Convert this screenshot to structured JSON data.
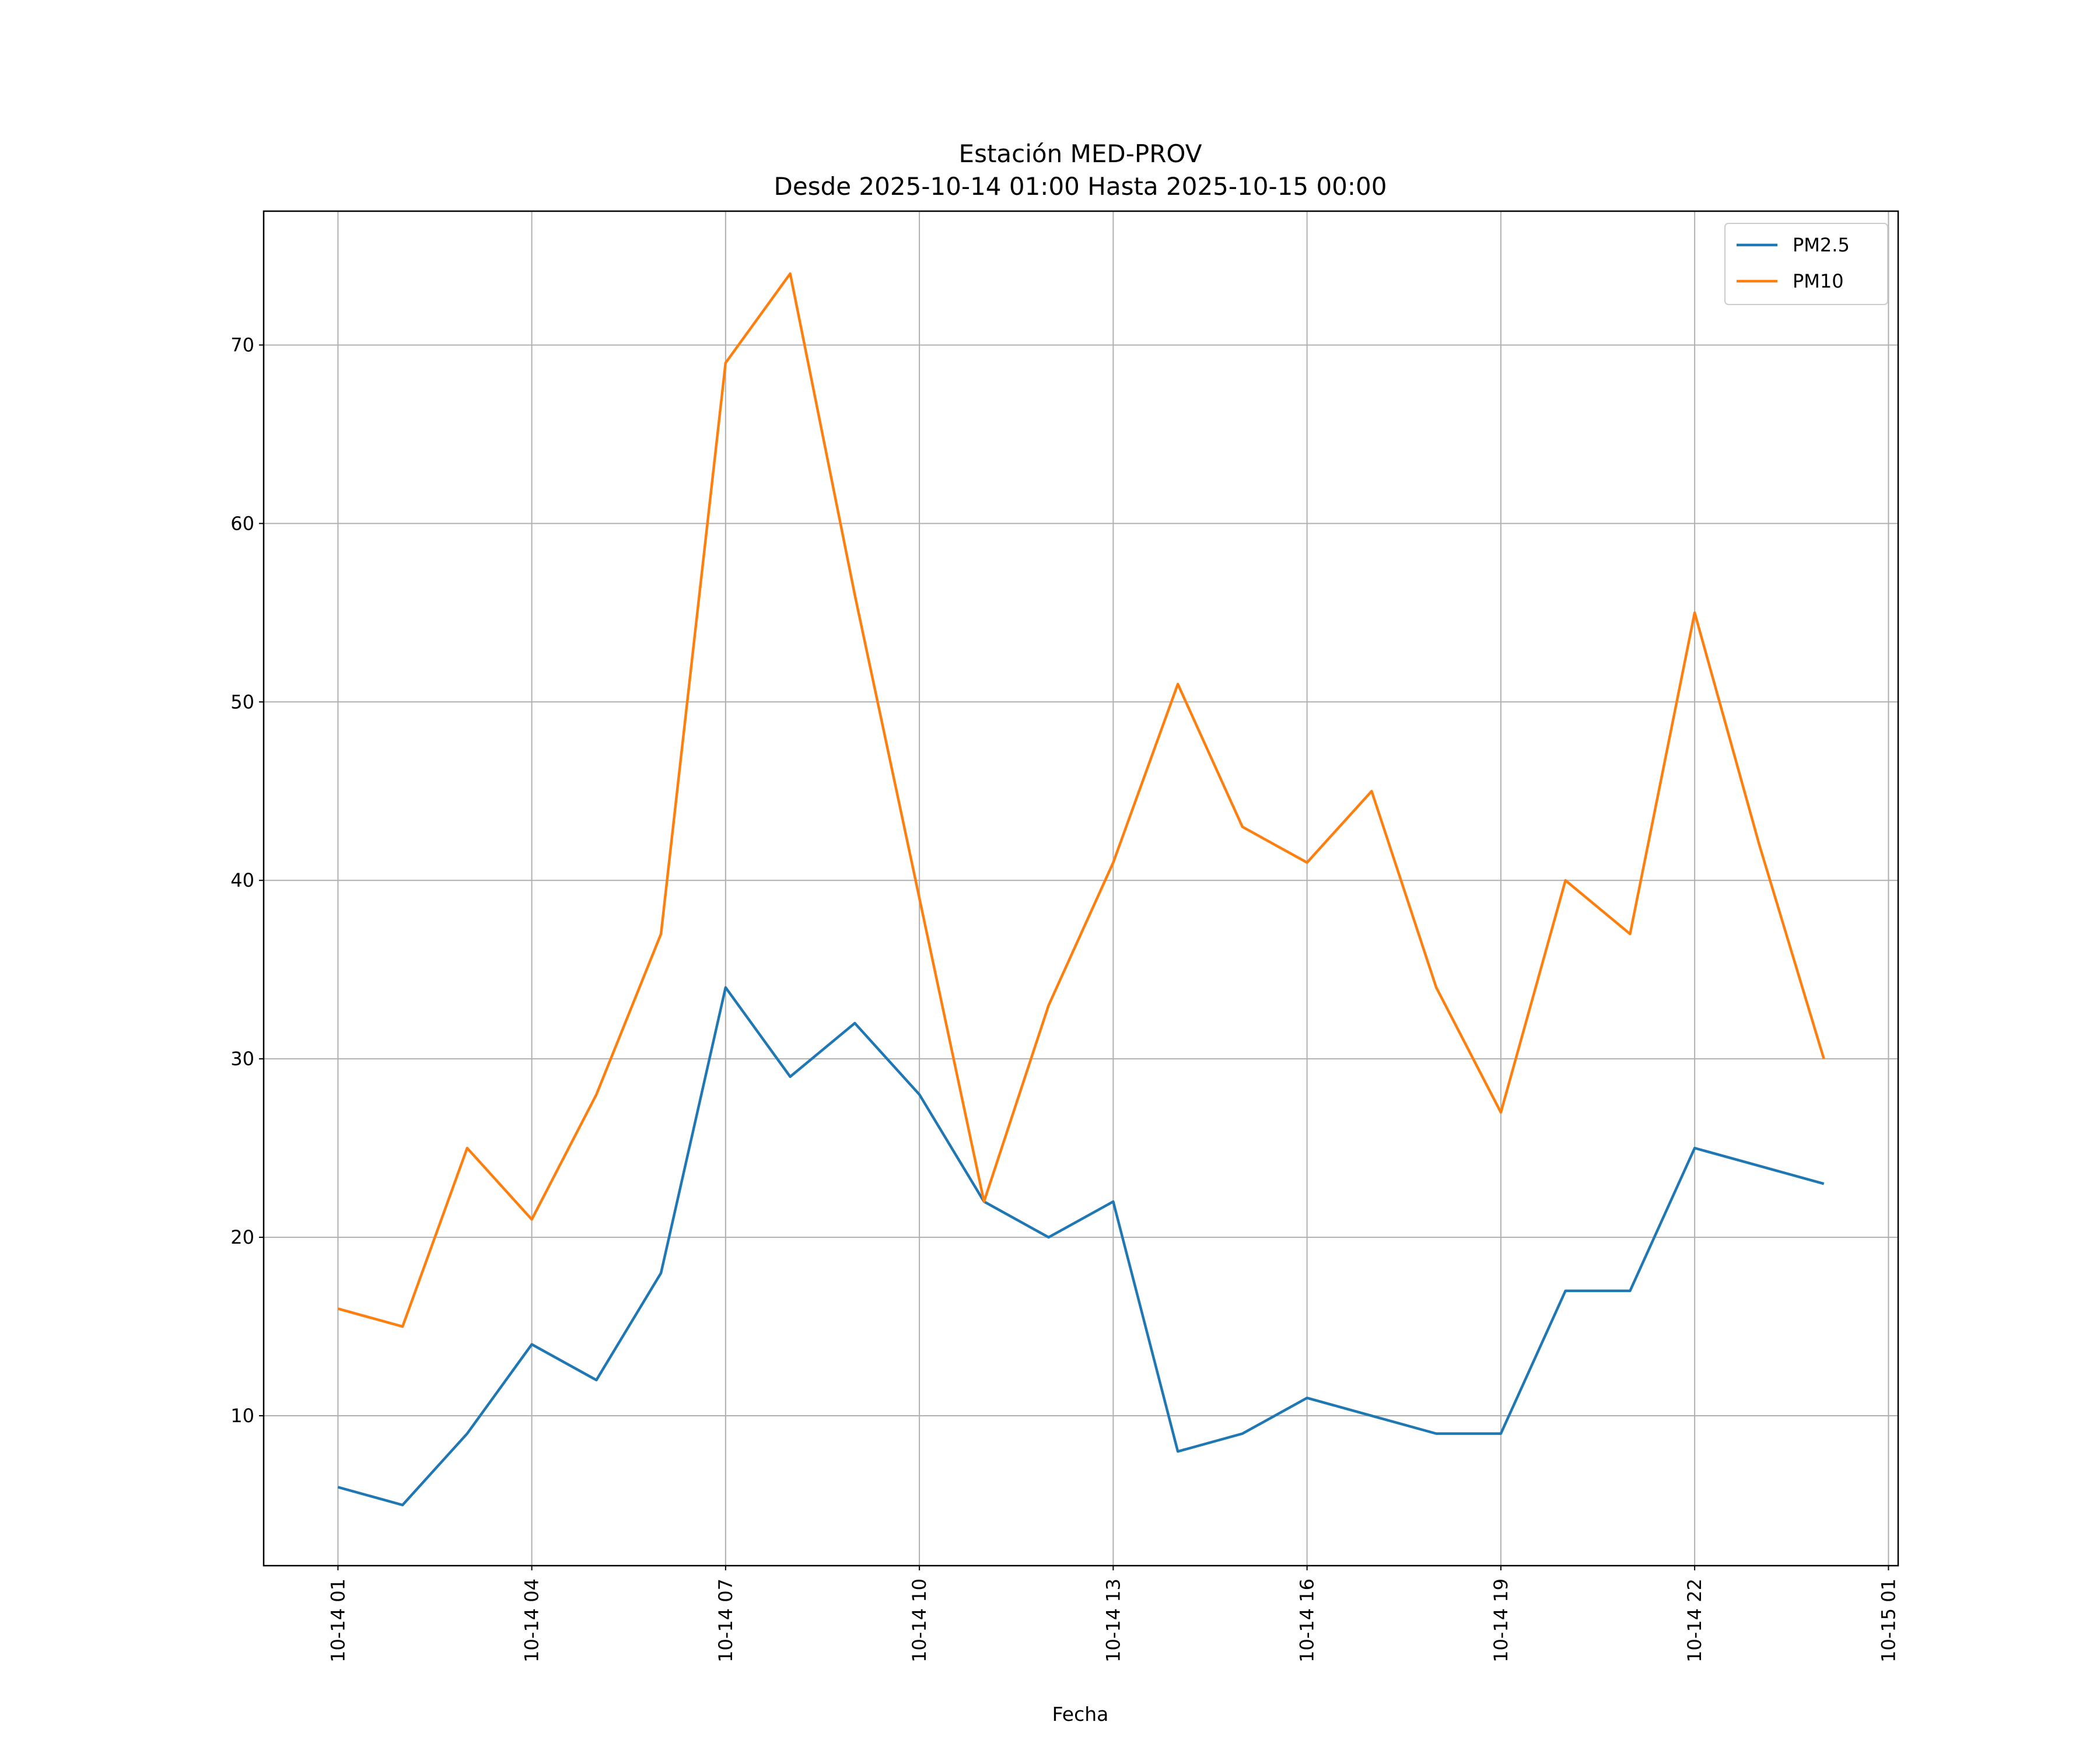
{
  "chart_data": {
    "type": "line",
    "title": "Estación MED-PROV",
    "subtitle": "Desde 2025-10-14 01:00 Hasta 2025-10-15 00:00",
    "xlabel": "Fecha",
    "ylabel": "",
    "x": [
      "10-14 01",
      "10-14 02",
      "10-14 03",
      "10-14 04",
      "10-14 05",
      "10-14 06",
      "10-14 07",
      "10-14 08",
      "10-14 09",
      "10-14 10",
      "10-14 11",
      "10-14 12",
      "10-14 13",
      "10-14 14",
      "10-14 15",
      "10-14 16",
      "10-14 17",
      "10-14 18",
      "10-14 19",
      "10-14 20",
      "10-14 21",
      "10-14 22",
      "10-14 23",
      "10-15 00"
    ],
    "x_hours": [
      0,
      1,
      2,
      3,
      4,
      5,
      6,
      7,
      8,
      9,
      10,
      11,
      12,
      13,
      14,
      15,
      16,
      17,
      18,
      19,
      20,
      21,
      22,
      23
    ],
    "xticks": [
      {
        "label": "10-14 01",
        "hour": 0
      },
      {
        "label": "10-14 04",
        "hour": 3
      },
      {
        "label": "10-14 07",
        "hour": 6
      },
      {
        "label": "10-14 10",
        "hour": 9
      },
      {
        "label": "10-14 13",
        "hour": 12
      },
      {
        "label": "10-14 16",
        "hour": 15
      },
      {
        "label": "10-14 19",
        "hour": 18
      },
      {
        "label": "10-14 22",
        "hour": 21
      },
      {
        "label": "10-15 01",
        "hour": 24
      }
    ],
    "xlim": [
      -1.15,
      24.15
    ],
    "yticks": [
      10,
      20,
      30,
      40,
      50,
      60,
      70
    ],
    "ylim": [
      1.6,
      77.5
    ],
    "grid": true,
    "legend_position": "top-right",
    "series": [
      {
        "name": "PM2.5",
        "color": "#1f77b4",
        "values": [
          6,
          5,
          9,
          14,
          12,
          18,
          34,
          29,
          32,
          28,
          22,
          20,
          22,
          8,
          9,
          11,
          10,
          9,
          9,
          17,
          17,
          25,
          24,
          23
        ]
      },
      {
        "name": "PM10",
        "color": "#ff7f0e",
        "values": [
          16,
          15,
          25,
          21,
          28,
          37,
          69,
          74,
          56,
          39,
          22,
          33,
          41,
          51,
          43,
          41,
          45,
          34,
          27,
          40,
          37,
          55,
          42,
          30
        ]
      }
    ]
  }
}
